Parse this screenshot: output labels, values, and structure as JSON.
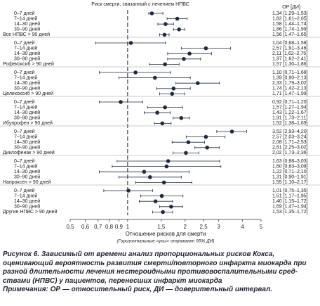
{
  "chart_data": {
    "type": "forest",
    "title": "Риск смерти, связанный с лечением НПВС",
    "value_header": "ОР [ДИ]",
    "x_label": "Отношение рисков для смерти",
    "x_note": "(Горизонтальные «усы» отражают 95% ДИ)",
    "caption": "Рисунок 6. Зависимый от времени анализ пропорциональных рисков Кокса, оценивающий вероятность развития смерти/повторного инфаркта миокарда при разной длительности лечения нестероидными противовоспалительными сред­ствами (НПВС) у пациентов, перенесших инфаркт миокарда",
    "note": "Примечания: ОР — относительный риск, ДИ — доверительный интервал.",
    "log_x": true,
    "color": "#1f2a44",
    "xlim": [
      0.5,
      5
    ],
    "xticks": [
      {
        "value": 0.5,
        "label": "0,5"
      },
      {
        "value": 0.6,
        "label": "0,6"
      },
      {
        "value": 0.7,
        "label": "0,7"
      },
      {
        "value": 0.8,
        "label": "0,8"
      },
      {
        "value": 0.9,
        "label": "0,9"
      },
      1,
      {
        "value": 1.5,
        "label": "1,5"
      },
      2,
      {
        "value": 2.5,
        "label": "2,5"
      },
      3,
      4,
      5
    ],
    "categories": [
      "0–7 дней",
      "7–14 дней",
      "14–30 дней",
      "30–90 дней",
      "Все НПВС > 90 дней",
      "0–7 дней",
      "7–14 дней",
      "14–30 дней",
      "30–90 дней",
      "Рофекоксиб > 90 дней",
      "0–7 дней",
      "7–14 дней",
      "14–30 дней",
      "30–90 дней",
      "Целекоксиб > 90 дней",
      "0–7 дней",
      "7–14 дней",
      "14–30 дней",
      "30–90 дней",
      "Ибупрофен > 90 дней",
      "0–7 дней",
      "7–14 дней",
      "14–30 дней",
      "30–90 дней",
      "Диклофенак > 90 дней",
      "0–7 дней",
      "7–14 дней",
      "14–30 дней",
      "30–90 дней",
      "Напроксен > 90 дней",
      "0–7 дней",
      "7–14 дней",
      "14–30 дней",
      "30–90 дней",
      "Другие НПВС > 90 дней"
    ],
    "values": [
      1.34,
      1.82,
      1.58,
      1.86,
      1.56,
      1.04,
      2.57,
      2.11,
      1.97,
      1.57,
      1.1,
      1.39,
      2.33,
      1.74,
      1.71,
      0.92,
      1.57,
      1.43,
      1.91,
      1.52,
      3.52,
      2.57,
      2.08,
      2.61,
      2.02,
      1.63,
      1.6,
      1.22,
      1.31,
      1.55,
      1.01,
      1.51,
      1.4,
      1.69,
      1.53
    ],
    "lower": [
      1.29,
      1.61,
      1.44,
      1.74,
      1.47,
      0.68,
      1.91,
      1.62,
      1.62,
      1.3,
      0.71,
      0.9,
      1.79,
      1.42,
      1.47,
      0.71,
      1.27,
      1.22,
      1.73,
      1.38,
      2.93,
      2.03,
      1.71,
      2.25,
      1.73,
      0.88,
      0.83,
      0.71,
      0.9,
      1.1,
      0.75,
      1.17,
      1.15,
      1.47,
      1.35
    ],
    "upper": [
      1.53,
      2.05,
      1.74,
      1.99,
      1.65,
      1.58,
      3.46,
      2.75,
      2.41,
      1.86,
      1.68,
      2.13,
      3.02,
      2.13,
      1.99,
      1.2,
      1.94,
      1.67,
      2.11,
      1.69,
      4.2,
      3.24,
      2.53,
      3.02,
      2.36,
      3.03,
      3.08,
      2.1,
      1.91,
      2.17,
      1.35,
      1.95,
      1.72,
      1.94,
      1.72
    ],
    "value_labels": [
      "1,34 [1,29–1,53]",
      "1,82 [1,61–2,05]",
      "1,58 [1,44–1,74]",
      "1,86 [1,74–1,99]",
      "1,56 [1,47–1,65]",
      "1,04 [0,68–1,58]",
      "2,57 [1,91–3,46]",
      "2,11 [1,62–2,75]",
      "1,97 [1,62–2,41]",
      "1,57 [1,30–1,86]",
      "1,10 [0,71–1,68]",
      "1,39 [0,90–2,13]",
      "2,33 [1,79–3,02]",
      "1,74 [1,42–2,13]",
      "1,71 [1,47–1,99]",
      "0,92 [0,71–1,20]",
      "1,57 [1,27–1,94]",
      "1,43 [1,22–1,67]",
      "1,91 [1,73–2,11]",
      "1,52 [1,38–1,69]",
      "3,52 [2,93–4,20]",
      "2,57 [2,03–3,24]",
      "2,08 [1,71–2,53]",
      "2,61 [2,25–3,02]",
      "2,02 [1,73–2,36]",
      "1,63 [0,88–3,03]",
      "1,60 [0,83–3,08]",
      "1,22 [0,71–2,10]",
      "1,31 [0,90–1,91]",
      "1,55 [1,10–2,17]",
      "1,01 [0,75–1,35]",
      "1,51 [1,17–1,95]",
      "1,40 [1,15–1,72]",
      "1,69 [1,47–1,94]",
      "1,53 [1,35–1,72]"
    ]
  }
}
